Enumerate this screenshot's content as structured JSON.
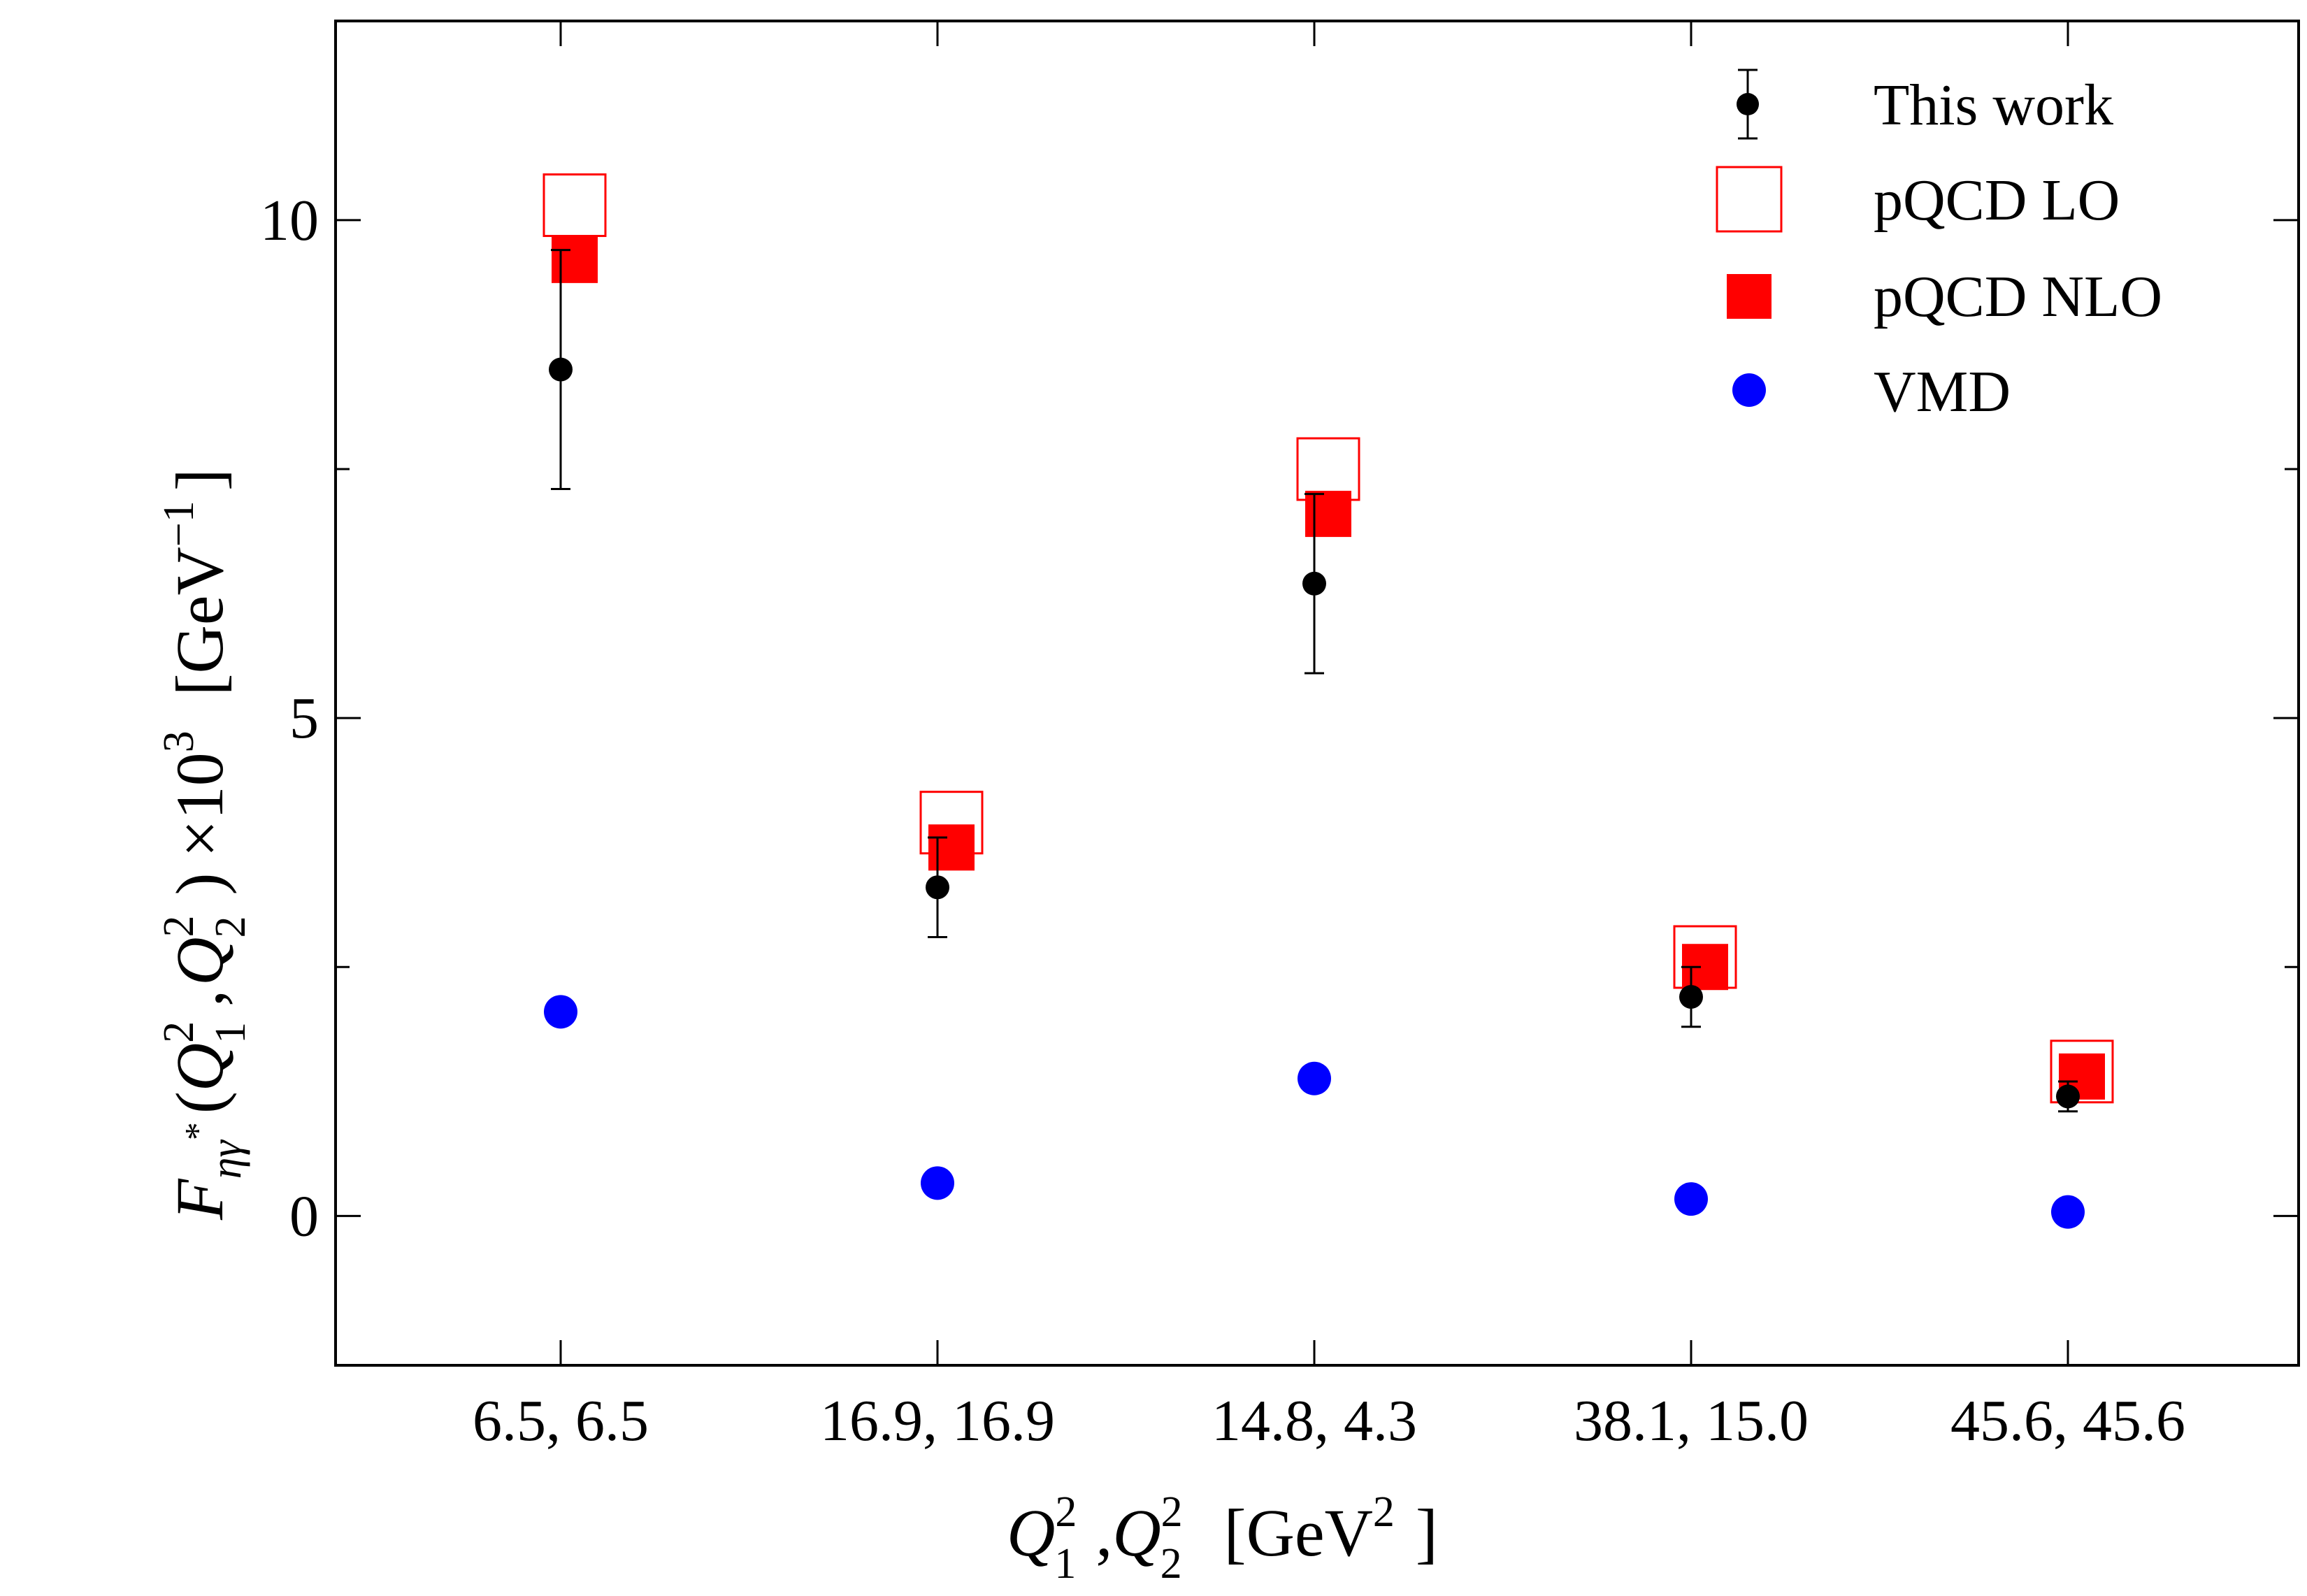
{
  "chart_data": {
    "type": "scatter",
    "categories": [
      "6.5, 6.5",
      "16.9, 16.9",
      "14.8, 4.3",
      "38.1, 15.0",
      "45.6, 45.6"
    ],
    "ylim": [
      -1.5,
      12
    ],
    "yticks": [
      0,
      5,
      10
    ],
    "ytick_labels": [
      "0",
      "5",
      "10"
    ],
    "ylabel": {
      "F": "F",
      "sub_eta": "η",
      "sub_gamma": "γ",
      "sub_star": "*",
      "open": "(",
      "Q1": "Q",
      "Q1_sup": "2",
      "Q1_sub": "1",
      "comma": ",",
      "Q2": "Q",
      "Q2_sup": "2",
      "Q2_sub": "2",
      "close": ")",
      "times": "×10",
      "times_sup": "3",
      "unit": "[GeV",
      "unit_sup": "−1",
      "unit_close": "]"
    },
    "xlabel": {
      "Q1": "Q",
      "Q1_sup": "2",
      "Q1_sub": "1",
      "comma": ",",
      "Q2": "Q",
      "Q2_sup": "2",
      "Q2_sub": "2",
      "unit": "[GeV",
      "unit_sup": "2",
      "unit_close": "]"
    },
    "series": [
      {
        "name": "This work",
        "marker": "circle-errorbar",
        "color": "#000000",
        "values": [
          8.5,
          3.3,
          6.35,
          2.2,
          1.2
        ],
        "err_low": [
          1.2,
          0.5,
          0.9,
          0.3,
          0.15
        ],
        "err_high": [
          1.2,
          0.5,
          0.9,
          0.3,
          0.15
        ]
      },
      {
        "name": "pQCD LO",
        "marker": "open-square",
        "color": "#ff0000",
        "values": [
          10.15,
          3.95,
          7.5,
          2.6,
          1.45
        ]
      },
      {
        "name": "pQCD NLO",
        "marker": "filled-square",
        "color": "#ff0000",
        "values": [
          9.6,
          3.7,
          7.05,
          2.5,
          1.4
        ]
      },
      {
        "name": "VMD",
        "marker": "filled-circle",
        "color": "#0000ff",
        "values": [
          2.05,
          0.33,
          1.38,
          0.17,
          0.04
        ]
      }
    ],
    "legend_position": "top-right"
  }
}
